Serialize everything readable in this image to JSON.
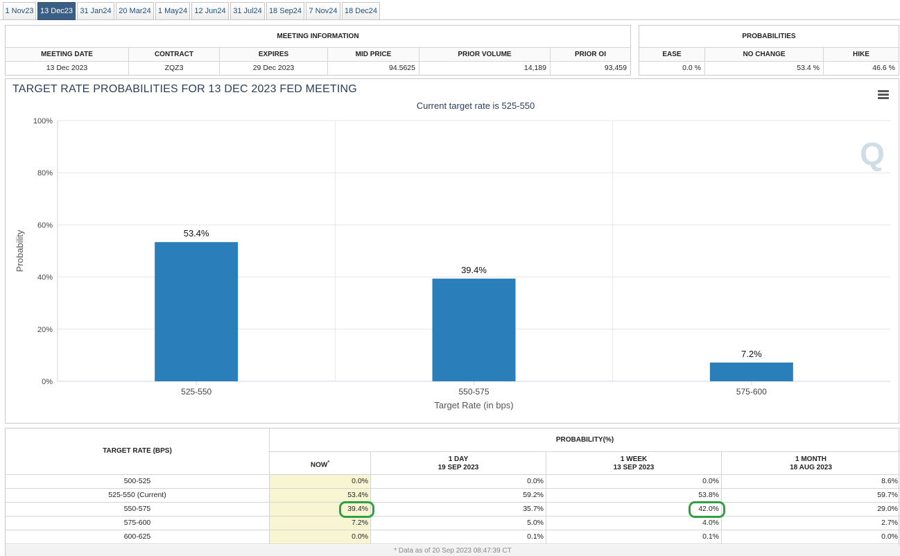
{
  "tabs": [
    "1 Nov23",
    "13 Dec23",
    "31 Jan24",
    "20 Mar24",
    "1 May24",
    "12 Jun24",
    "31 Jul24",
    "18 Sep24",
    "7 Nov24",
    "18 Dec24"
  ],
  "active_tab": "13 Dec23",
  "meeting_info": {
    "title": "MEETING INFORMATION",
    "headers": [
      "MEETING DATE",
      "CONTRACT",
      "EXPIRES",
      "MID PRICE",
      "PRIOR VOLUME",
      "PRIOR OI"
    ],
    "values": [
      "13 Dec 2023",
      "ZQZ3",
      "29 Dec 2023",
      "94.5625",
      "14,189",
      "93,459"
    ]
  },
  "probabilities": {
    "title": "PROBABILITIES",
    "headers": [
      "EASE",
      "NO CHANGE",
      "HIKE"
    ],
    "values": [
      "0.0 %",
      "53.4 %",
      "46.6 %"
    ]
  },
  "chart": {
    "title": "TARGET RATE PROBABILITIES FOR 13 DEC 2023 FED MEETING",
    "subtitle": "Current target rate is 525-550",
    "watermark": "Q",
    "menu_icon": "hamburger-menu-icon"
  },
  "chart_data": {
    "type": "bar",
    "title": "TARGET RATE PROBABILITIES FOR 13 DEC 2023 FED MEETING",
    "subtitle": "Current target rate is 525-550",
    "categories": [
      "525-550",
      "550-575",
      "575-600"
    ],
    "values": [
      53.4,
      39.4,
      7.2
    ],
    "data_labels": [
      "53.4%",
      "39.4%",
      "7.2%"
    ],
    "xlabel": "Target Rate (in bps)",
    "ylabel": "Probability",
    "ylim": [
      0,
      100
    ],
    "yticks": [
      "0%",
      "20%",
      "40%",
      "60%",
      "80%",
      "100%"
    ],
    "grid": true,
    "bar_color": "#2a7fba"
  },
  "prob_table": {
    "col_header": "TARGET RATE (BPS)",
    "group_header": "PROBABILITY(%)",
    "sub_headers": [
      {
        "line1": "NOW",
        "line2": "",
        "asterisk": "*"
      },
      {
        "line1": "1 DAY",
        "line2": "19 SEP 2023"
      },
      {
        "line1": "1 WEEK",
        "line2": "13 SEP 2023"
      },
      {
        "line1": "1 MONTH",
        "line2": "18 AUG 2023"
      }
    ],
    "rows": [
      {
        "rate": "500-525",
        "now": "0.0%",
        "day": "0.0%",
        "week": "0.0%",
        "month": "8.6%"
      },
      {
        "rate": "525-550 (Current)",
        "now": "53.4%",
        "day": "59.2%",
        "week": "53.8%",
        "month": "59.7%"
      },
      {
        "rate": "550-575",
        "now": "39.4%",
        "day": "35.7%",
        "week": "42.0%",
        "month": "29.0%"
      },
      {
        "rate": "575-600",
        "now": "7.2%",
        "day": "5.0%",
        "week": "4.0%",
        "month": "2.7%"
      },
      {
        "rate": "600-625",
        "now": "0.0%",
        "day": "0.1%",
        "week": "0.1%",
        "month": "0.0%"
      }
    ],
    "footer": "* Data as of 20 Sep 2023 08:47:39 CT",
    "highlight_color": "#2ea043"
  }
}
